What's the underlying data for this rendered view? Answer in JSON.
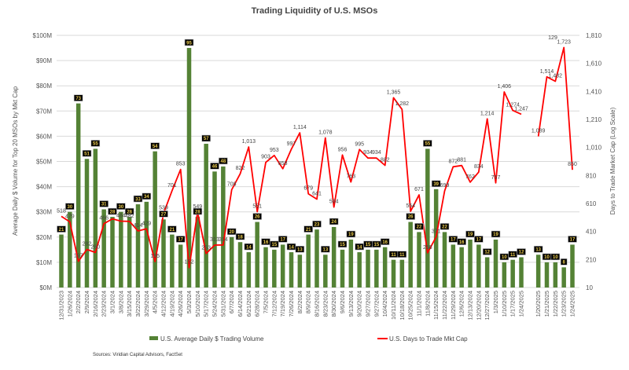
{
  "chart_data": {
    "type": "bar+line",
    "title": "Trading Liquidity of U.S. MSOs",
    "ylabel_left": "Average Daily $ Volume for Top 20 MSOs by Mkt Cap",
    "ylabel_right": "Days to Trade Market Cap (Log Scale)",
    "ylim_left": [
      0,
      100
    ],
    "ylim_right": [
      10,
      1810
    ],
    "left_ticks": [
      "$0M",
      "$10M",
      "$20M",
      "$30M",
      "$40M",
      "$50M",
      "$60M",
      "$70M",
      "$80M",
      "$90M",
      "$100M"
    ],
    "right_ticks": [
      "10",
      "210",
      "410",
      "610",
      "810",
      "1,010",
      "1,210",
      "1,410",
      "1,610",
      "1,810"
    ],
    "grid": true,
    "legend_position": "bottom",
    "categories": [
      "12/31/2023",
      "1/26/2024",
      "2/2/2024",
      "2/9/2024",
      "2/16/2024",
      "2/23/2024",
      "3/1/2024",
      "3/8/2024",
      "3/15/2024",
      "3/22/2024",
      "3/29/2024",
      "4/5/2024",
      "4/12/2024",
      "4/19/2024",
      "4/26/2024",
      "5/3/2024",
      "5/10/2024",
      "5/17/2024",
      "5/24/2024",
      "5/31/2024",
      "6/7/2024",
      "6/14/2024",
      "6/21/2024",
      "6/28/2024",
      "7/5/2024",
      "7/12/2024",
      "7/19/2024",
      "7/26/2024",
      "8/2/2024",
      "8/9/2024",
      "8/16/2024",
      "8/23/2024",
      "8/30/2024",
      "9/6/2024",
      "9/13/2024",
      "9/20/2024",
      "9/27/2024",
      "9/27/2024",
      "10/4/2024",
      "10/11/2024",
      "10/18/2024",
      "10/25/2024",
      "11/1/2024",
      "11/8/2024",
      "11/15/2024",
      "11/22/2024",
      "11/29/2024",
      "12/6/2024",
      "12/13/2024",
      "12/20/2024",
      "12/27/2024",
      "1/3/2025",
      "1/10/2025",
      "1/17/2025",
      "1/24/2025",
      "",
      "1/20/2025",
      "1/21/2025",
      "1/22/2025",
      "1/23/2025",
      "1/24/2025"
    ],
    "series": [
      {
        "name": "U.S. Average Daily $ Trading Volume",
        "type": "bar",
        "axis": "left",
        "color": "#548235",
        "values": [
          21,
          30,
          73,
          51,
          55,
          31,
          28,
          30,
          28,
          33,
          34,
          54,
          27,
          21,
          17,
          95,
          28,
          57,
          46,
          48,
          20,
          18,
          14,
          26,
          16,
          15,
          17,
          14,
          13,
          21,
          23,
          13,
          24,
          15,
          19,
          14,
          15,
          15,
          16,
          11,
          11,
          26,
          22,
          55,
          39,
          22,
          17,
          16,
          19,
          17,
          12,
          19,
          10,
          11,
          12,
          null,
          13,
          10,
          10,
          8,
          17
        ]
      },
      {
        "name": "U.S. Days to Trade Mkt Cap",
        "type": "line",
        "axis": "right",
        "color": "#ff0000",
        "values": [
          518,
          479,
          197,
          282,
          260,
          466,
          500,
          484,
          482,
          414,
          429,
          195,
          539,
          701,
          853,
          152,
          549,
          253,
          313,
          314,
          708,
          822,
          1013,
          551,
          903,
          953,
          858,
          997,
          1114,
          679,
          641,
          1078,
          584,
          956,
          763,
          995,
          934,
          934,
          882,
          1365,
          1282,
          554,
          671,
          258,
          371,
          699,
          872,
          881,
          762,
          834,
          1214,
          757,
          1406,
          1274,
          1247,
          null,
          1089,
          1514,
          1482,
          1723,
          850
        ],
        "labels": [
          "518",
          "479",
          "197",
          "282",
          "260",
          "466",
          "",
          "484",
          "482",
          "414",
          "429",
          "195",
          "539",
          "701",
          "853",
          "152",
          "549",
          "253",
          "313",
          "314",
          "708",
          "822",
          "1,013",
          "551",
          "903",
          "953",
          "858",
          "997",
          "1,114",
          "679",
          "641",
          "1,078",
          "584",
          "956",
          "763",
          "995",
          "934",
          "934",
          "882",
          "1,365",
          "1,282",
          "554",
          "671",
          "258",
          "371",
          "699",
          "872",
          "881",
          "762",
          "834",
          "1,214",
          "757",
          "1,406",
          "1,274",
          "1,247",
          "",
          "1,089",
          "1,514",
          "1,482",
          "1,723",
          "850"
        ]
      }
    ],
    "annotations": [
      "129"
    ],
    "source": "Sources: Viridian Capital Advisors, FactSet"
  }
}
